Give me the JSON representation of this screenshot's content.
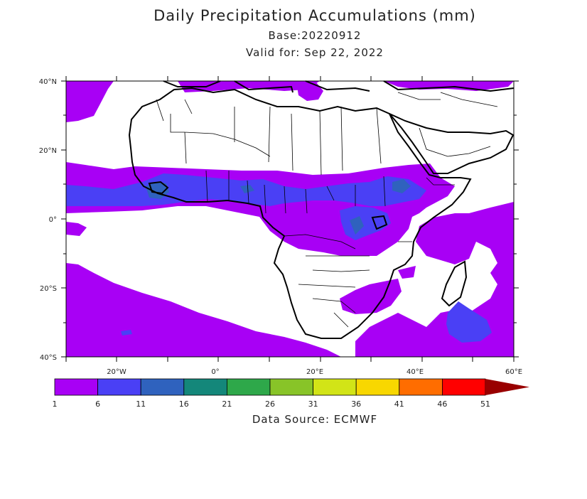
{
  "title": "Daily Precipitation Accumulations (mm)",
  "base": "Base:20220912",
  "valid": "Valid for: Sep 22, 2022",
  "source": "Data Source: ECMWF",
  "map": {
    "lat_labels": [
      "40°N",
      "20°N",
      "0°",
      "20°S",
      "40°S"
    ],
    "lon_labels": [
      "20°W",
      "0°",
      "20°E",
      "40°E",
      "60°E"
    ],
    "lon_range": [
      "-28",
      "60"
    ],
    "lat_range": [
      "-40",
      "40"
    ]
  },
  "colorbar": {
    "labels": [
      "1",
      "6",
      "11",
      "16",
      "21",
      "26",
      "31",
      "36",
      "41",
      "46",
      "51"
    ],
    "colors": [
      "#a800f5",
      "#4a40f5",
      "#2f62be",
      "#14877a",
      "#2ea84a",
      "#88c428",
      "#d2e417",
      "#f8d700",
      "#ff6d00",
      "#ff0000",
      "#990000"
    ]
  }
}
